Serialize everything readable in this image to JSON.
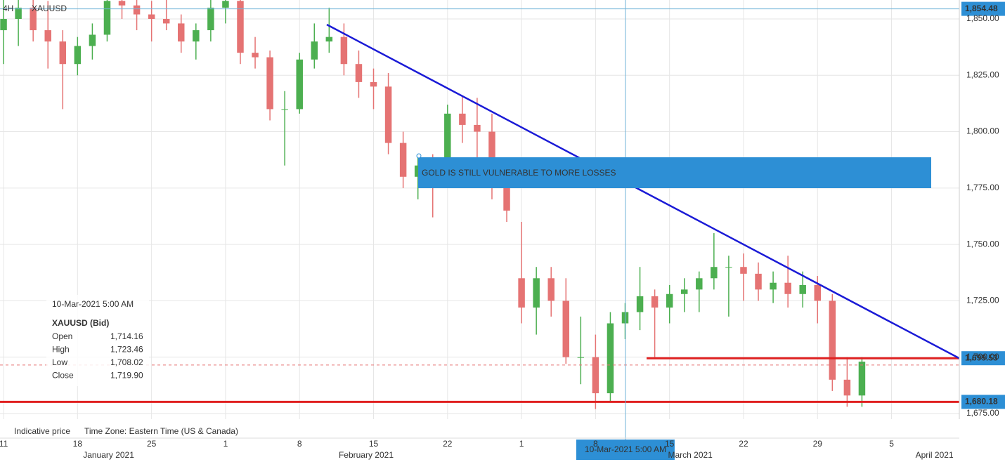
{
  "chart_data": {
    "type": "candlestick",
    "symbol": "XAUUSD",
    "timeframe": "4H",
    "up_color": "#4caf50",
    "down_color": "#e57373",
    "x": [
      0,
      1,
      2,
      3,
      4,
      5,
      6,
      7,
      8,
      9,
      10,
      11,
      12,
      13,
      14,
      15,
      16,
      17,
      18,
      19,
      20,
      21,
      22,
      23,
      24,
      25,
      26,
      27,
      28,
      29,
      30,
      31,
      32,
      33,
      34,
      35,
      36,
      37,
      38,
      39,
      40,
      41,
      42,
      43,
      44,
      45,
      46,
      47,
      48,
      49,
      50,
      51,
      52,
      53,
      54,
      55,
      56,
      57,
      58
    ],
    "open": [
      1845,
      1850,
      1855,
      1845,
      1840,
      1830,
      1838,
      1843,
      1858,
      1856,
      1852,
      1850,
      1848,
      1840,
      1845,
      1855,
      1858,
      1835,
      1833,
      1810,
      1810,
      1832,
      1840,
      1842,
      1830,
      1822,
      1820,
      1795,
      1780,
      1785,
      1785,
      1808,
      1803,
      1800,
      1775,
      1735,
      1722,
      1735,
      1725,
      1700,
      1700,
      1684,
      1715,
      1720,
      1727,
      1722,
      1728,
      1730,
      1735,
      1740,
      1740,
      1737,
      1730,
      1733,
      1728,
      1732,
      1725,
      1690,
      1683
    ],
    "high": [
      1860,
      1862,
      1862,
      1858,
      1845,
      1842,
      1848,
      1860,
      1862,
      1860,
      1858,
      1860,
      1852,
      1848,
      1862,
      1864,
      1860,
      1842,
      1836,
      1818,
      1835,
      1848,
      1855,
      1848,
      1836,
      1828,
      1826,
      1800,
      1790,
      1790,
      1812,
      1816,
      1815,
      1808,
      1780,
      1760,
      1740,
      1740,
      1735,
      1718,
      1710,
      1720,
      1724,
      1740,
      1730,
      1732,
      1735,
      1738,
      1755,
      1745,
      1746,
      1742,
      1738,
      1745,
      1738,
      1736,
      1728,
      1700,
      1700
    ],
    "low": [
      1830,
      1838,
      1840,
      1828,
      1810,
      1825,
      1832,
      1840,
      1850,
      1845,
      1840,
      1845,
      1835,
      1832,
      1840,
      1848,
      1830,
      1828,
      1805,
      1785,
      1808,
      1828,
      1835,
      1825,
      1815,
      1810,
      1790,
      1775,
      1770,
      1762,
      1780,
      1795,
      1785,
      1770,
      1760,
      1715,
      1710,
      1718,
      1697,
      1688,
      1677,
      1680,
      1708,
      1712,
      1700,
      1715,
      1720,
      1720,
      1730,
      1718,
      1725,
      1725,
      1724,
      1722,
      1722,
      1715,
      1685,
      1678,
      1678
    ],
    "close": [
      1850,
      1855,
      1845,
      1840,
      1830,
      1838,
      1843,
      1858,
      1856,
      1852,
      1850,
      1848,
      1840,
      1845,
      1855,
      1858,
      1835,
      1833,
      1810,
      1810,
      1832,
      1840,
      1842,
      1830,
      1822,
      1820,
      1795,
      1780,
      1785,
      1778,
      1808,
      1803,
      1800,
      1775,
      1765,
      1722,
      1735,
      1725,
      1700,
      1700,
      1684,
      1715,
      1720,
      1727,
      1722,
      1728,
      1730,
      1735,
      1740,
      1740,
      1737,
      1730,
      1733,
      1728,
      1732,
      1725,
      1690,
      1683,
      1698
    ],
    "xlim": [
      -0.24,
      64.58
    ],
    "ylim": [
      1672.5,
      1858.4
    ],
    "xticks": [
      {
        "value": 0,
        "label": "11"
      },
      {
        "value": 5,
        "label": "18"
      },
      {
        "value": 10,
        "label": "25"
      },
      {
        "value": 15,
        "label": "1"
      },
      {
        "value": 20,
        "label": "8"
      },
      {
        "value": 25,
        "label": "15"
      },
      {
        "value": 30,
        "label": "22"
      },
      {
        "value": 35,
        "label": "1"
      },
      {
        "value": 40,
        "label": "8"
      },
      {
        "value": 45,
        "label": "15"
      },
      {
        "value": 50,
        "label": "22"
      },
      {
        "value": 55,
        "label": "29"
      },
      {
        "value": 60,
        "label": "5"
      }
    ],
    "month_labels": [
      {
        "value": 7.1,
        "label": "January 2021"
      },
      {
        "value": 24.5,
        "label": "February 2021"
      },
      {
        "value": 46.4,
        "label": "March 2021"
      },
      {
        "value": 62.9,
        "label": "April 2021"
      }
    ],
    "yticks": [
      {
        "value": 1675,
        "label": "1,675.00"
      },
      {
        "value": 1700,
        "label": "1,700.00"
      },
      {
        "value": 1725,
        "label": "1,725.00"
      },
      {
        "value": 1750,
        "label": "1,750.00"
      },
      {
        "value": 1775,
        "label": "1,775.00"
      },
      {
        "value": 1800,
        "label": "1,800.00"
      },
      {
        "value": 1825,
        "label": "1,825.00"
      },
      {
        "value": 1850,
        "label": "1,850.00"
      }
    ],
    "grid": true,
    "trendline": {
      "color": "#1a1ad6",
      "x": [
        21.84,
        64.58
      ],
      "y": [
        1847.5,
        1699.5
      ]
    },
    "levels": [
      {
        "value": 1699.53,
        "from": 43.45,
        "color": "#e02020"
      },
      {
        "value": 1680.18,
        "from": -0.24,
        "color": "#e02020"
      }
    ],
    "last_price_line": 1696.5,
    "crosshair": {
      "x": 42.02,
      "y": 1854.48,
      "label": "10-Mar-2021 5:00 AM"
    },
    "price_tags": [
      {
        "value": 1854.48,
        "label": "1,854.48"
      },
      {
        "value": 1699.53,
        "label": "1,699.53"
      },
      {
        "value": 1680.18,
        "label": "1,680.18"
      }
    ],
    "annotation": "GOLD IS STILL VULNERABLE TO MORE LOSSES",
    "tooltip": {
      "date": "10-Mar-2021 5:00 AM",
      "title": "XAUUSD (Bid)",
      "rows": [
        [
          "Open",
          "1,714.16"
        ],
        [
          "High",
          "1,723.46"
        ],
        [
          "Low",
          "1,708.02"
        ],
        [
          "Close",
          "1,719.90"
        ]
      ]
    },
    "footer": [
      "Indicative price",
      "Time Zone: Eastern Time (US & Canada)"
    ]
  }
}
